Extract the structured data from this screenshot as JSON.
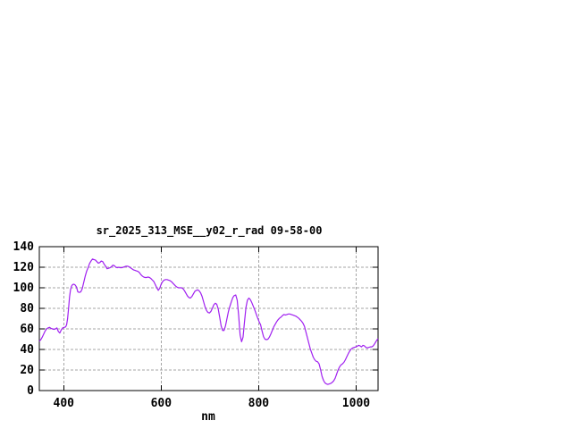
{
  "chart": {
    "title": "sr_2025_313_MSE__y02_r_rad 09-58-00",
    "xlabel": "nm"
  },
  "chart_data": {
    "type": "line",
    "title": "sr_2025_313_MSE__y02_r_rad 09-58-00",
    "xlabel": "nm",
    "ylabel": "",
    "xlim": [
      350,
      1045
    ],
    "ylim": [
      0,
      140
    ],
    "x_ticks": [
      400,
      600,
      800,
      1000
    ],
    "y_ticks": [
      0,
      20,
      40,
      60,
      80,
      100,
      120,
      140
    ],
    "grid": true,
    "legend_position": "none",
    "line_color": "#a020f0",
    "grid_color": "#a5a5a5",
    "axis_color": "#000000",
    "series": [
      {
        "name": "sr_2025_313_MSE__y02_r_rad",
        "points": [
          [
            350,
            48
          ],
          [
            353,
            49.5
          ],
          [
            356,
            52
          ],
          [
            359,
            55
          ],
          [
            362,
            58
          ],
          [
            365,
            60
          ],
          [
            368,
            61
          ],
          [
            371,
            61.5
          ],
          [
            374,
            60.5
          ],
          [
            377,
            60
          ],
          [
            380,
            59.5
          ],
          [
            383,
            60
          ],
          [
            386,
            61
          ],
          [
            389,
            57.5
          ],
          [
            392,
            56
          ],
          [
            395,
            59
          ],
          [
            398,
            61
          ],
          [
            401,
            61.5
          ],
          [
            404,
            62
          ],
          [
            406,
            64
          ],
          [
            408,
            70
          ],
          [
            410,
            80
          ],
          [
            412,
            91
          ],
          [
            414,
            98
          ],
          [
            416,
            101.5
          ],
          [
            418,
            103
          ],
          [
            420,
            103.5
          ],
          [
            423,
            103
          ],
          [
            426,
            101
          ],
          [
            429,
            96
          ],
          [
            432,
            95.5
          ],
          [
            435,
            96
          ],
          [
            438,
            99
          ],
          [
            441,
            105
          ],
          [
            444,
            111
          ],
          [
            447,
            116
          ],
          [
            450,
            119.5
          ],
          [
            453,
            123.5
          ],
          [
            456,
            126
          ],
          [
            459,
            128
          ],
          [
            462,
            127.5
          ],
          [
            465,
            127
          ],
          [
            468,
            125.5
          ],
          [
            471,
            124
          ],
          [
            474,
            124.5
          ],
          [
            477,
            126
          ],
          [
            480,
            125.5
          ],
          [
            483,
            123
          ],
          [
            486,
            121
          ],
          [
            489,
            118.5
          ],
          [
            492,
            119
          ],
          [
            495,
            119.5
          ],
          [
            498,
            120.5
          ],
          [
            501,
            122
          ],
          [
            504,
            121.5
          ],
          [
            507,
            120
          ],
          [
            510,
            119.5
          ],
          [
            513,
            120
          ],
          [
            516,
            119.5
          ],
          [
            519,
            119.5
          ],
          [
            522,
            120
          ],
          [
            525,
            120.5
          ],
          [
            528,
            121
          ],
          [
            531,
            121
          ],
          [
            534,
            120.5
          ],
          [
            537,
            119.5
          ],
          [
            540,
            118.5
          ],
          [
            543,
            117.5
          ],
          [
            546,
            117
          ],
          [
            549,
            116.5
          ],
          [
            552,
            116
          ],
          [
            555,
            115
          ],
          [
            558,
            113
          ],
          [
            561,
            111.5
          ],
          [
            564,
            110.5
          ],
          [
            567,
            110
          ],
          [
            570,
            110
          ],
          [
            573,
            110.5
          ],
          [
            576,
            110
          ],
          [
            579,
            109
          ],
          [
            582,
            107.5
          ],
          [
            585,
            106
          ],
          [
            588,
            103
          ],
          [
            591,
            100
          ],
          [
            594,
            97.5
          ],
          [
            597,
            99.5
          ],
          [
            600,
            103.5
          ],
          [
            603,
            106
          ],
          [
            606,
            107.5
          ],
          [
            609,
            108
          ],
          [
            612,
            108
          ],
          [
            615,
            107.5
          ],
          [
            618,
            107
          ],
          [
            621,
            106
          ],
          [
            624,
            104.5
          ],
          [
            627,
            103
          ],
          [
            630,
            101.5
          ],
          [
            633,
            100.5
          ],
          [
            636,
            100
          ],
          [
            639,
            100
          ],
          [
            642,
            100
          ],
          [
            645,
            99
          ],
          [
            648,
            97
          ],
          [
            651,
            94.5
          ],
          [
            654,
            92
          ],
          [
            657,
            90.5
          ],
          [
            660,
            90
          ],
          [
            663,
            91.5
          ],
          [
            666,
            94
          ],
          [
            669,
            96.5
          ],
          [
            672,
            97.5
          ],
          [
            675,
            98
          ],
          [
            678,
            97
          ],
          [
            681,
            95
          ],
          [
            684,
            91.5
          ],
          [
            687,
            86.5
          ],
          [
            690,
            81.5
          ],
          [
            693,
            78
          ],
          [
            696,
            76
          ],
          [
            699,
            75.5
          ],
          [
            702,
            77
          ],
          [
            705,
            80
          ],
          [
            708,
            83.5
          ],
          [
            711,
            85
          ],
          [
            714,
            84
          ],
          [
            717,
            79.5
          ],
          [
            720,
            71.5
          ],
          [
            723,
            63
          ],
          [
            726,
            58.5
          ],
          [
            729,
            58.5
          ],
          [
            732,
            63
          ],
          [
            735,
            70
          ],
          [
            738,
            77
          ],
          [
            741,
            82
          ],
          [
            744,
            86.5
          ],
          [
            747,
            90.5
          ],
          [
            750,
            92.5
          ],
          [
            753,
            93
          ],
          [
            756,
            88
          ],
          [
            759,
            73
          ],
          [
            762,
            54
          ],
          [
            765,
            47.5
          ],
          [
            768,
            52
          ],
          [
            771,
            67
          ],
          [
            774,
            81
          ],
          [
            777,
            88
          ],
          [
            780,
            90
          ],
          [
            783,
            88.5
          ],
          [
            786,
            85.5
          ],
          [
            789,
            82
          ],
          [
            792,
            78.5
          ],
          [
            795,
            74.5
          ],
          [
            798,
            70.5
          ],
          [
            801,
            67
          ],
          [
            804,
            64
          ],
          [
            807,
            58
          ],
          [
            810,
            52.5
          ],
          [
            813,
            50
          ],
          [
            816,
            49.5
          ],
          [
            819,
            50
          ],
          [
            822,
            52
          ],
          [
            825,
            55
          ],
          [
            828,
            58.5
          ],
          [
            831,
            62
          ],
          [
            834,
            64.5
          ],
          [
            837,
            67
          ],
          [
            840,
            69
          ],
          [
            843,
            70.5
          ],
          [
            846,
            71.5
          ],
          [
            849,
            73
          ],
          [
            852,
            74
          ],
          [
            855,
            73.5
          ],
          [
            858,
            74
          ],
          [
            861,
            74.5
          ],
          [
            864,
            74.5
          ],
          [
            867,
            74
          ],
          [
            870,
            73.5
          ],
          [
            873,
            73
          ],
          [
            876,
            72.5
          ],
          [
            879,
            71.5
          ],
          [
            882,
            70.5
          ],
          [
            885,
            69
          ],
          [
            888,
            67.5
          ],
          [
            891,
            65.5
          ],
          [
            894,
            62.5
          ],
          [
            897,
            57
          ],
          [
            900,
            51.5
          ],
          [
            903,
            46
          ],
          [
            906,
            40.5
          ],
          [
            909,
            36.5
          ],
          [
            912,
            32.5
          ],
          [
            915,
            30
          ],
          [
            918,
            28.5
          ],
          [
            921,
            28
          ],
          [
            924,
            26
          ],
          [
            927,
            20.5
          ],
          [
            930,
            14
          ],
          [
            933,
            10
          ],
          [
            936,
            7.5
          ],
          [
            939,
            6.5
          ],
          [
            942,
            6
          ],
          [
            945,
            6.5
          ],
          [
            948,
            7
          ],
          [
            951,
            8
          ],
          [
            954,
            9.5
          ],
          [
            957,
            12
          ],
          [
            960,
            16
          ],
          [
            963,
            20
          ],
          [
            966,
            23
          ],
          [
            969,
            25
          ],
          [
            972,
            26
          ],
          [
            975,
            27.5
          ],
          [
            978,
            30
          ],
          [
            981,
            33
          ],
          [
            984,
            36
          ],
          [
            987,
            38.5
          ],
          [
            990,
            40.5
          ],
          [
            993,
            41.5
          ],
          [
            996,
            42
          ],
          [
            999,
            42.5
          ],
          [
            1002,
            43
          ],
          [
            1005,
            44
          ],
          [
            1008,
            43.5
          ],
          [
            1011,
            42.5
          ],
          [
            1014,
            44
          ],
          [
            1017,
            43.5
          ],
          [
            1020,
            42
          ],
          [
            1023,
            41.5
          ],
          [
            1026,
            42
          ],
          [
            1029,
            42.5
          ],
          [
            1032,
            42.5
          ],
          [
            1035,
            43.5
          ],
          [
            1038,
            45.5
          ],
          [
            1041,
            48
          ],
          [
            1044,
            50
          ],
          [
            1045,
            50.5
          ]
        ]
      }
    ]
  }
}
